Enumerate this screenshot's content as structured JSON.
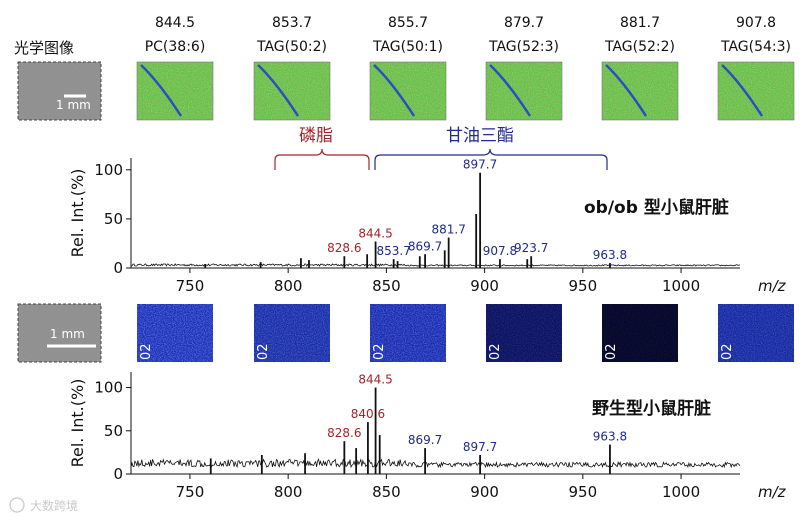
{
  "labels": {
    "optical_image": "光学图像",
    "scale_bar": "1 mm",
    "phospholipid": "磷脂",
    "triglyceride": "甘油三酯",
    "panel_ob": "ob/ob 型小鼠肝脏",
    "panel_wt": "野生型小鼠肝脏",
    "xlabel": "m/z",
    "ylabel": "Rel. Int.(%)",
    "tile_tag": "02",
    "watermark": "大数跨境"
  },
  "images": [
    {
      "mz": "844.5",
      "lipid": "PC(38:6)"
    },
    {
      "mz": "853.7",
      "lipid": "TAG(50:2)"
    },
    {
      "mz": "855.7",
      "lipid": "TAG(50:1)"
    },
    {
      "mz": "879.7",
      "lipid": "TAG(52:3)"
    },
    {
      "mz": "881.7",
      "lipid": "TAG(52:2)"
    },
    {
      "mz": "907.8",
      "lipid": "TAG(54:3)"
    }
  ],
  "colors": {
    "phospholipid": "#a3232b",
    "triglyceride": "#1f2a8c",
    "spectrum": "#111111"
  },
  "chart_data": [
    {
      "type": "line",
      "title": "ob/ob 型小鼠肝脏",
      "xlabel": "m/z",
      "ylabel": "Rel. Int.(%)",
      "xlim": [
        720,
        1030
      ],
      "ylim": [
        0,
        112
      ],
      "xticks": [
        750,
        800,
        850,
        900,
        950,
        1000
      ],
      "yticks": [
        0,
        50,
        100
      ],
      "baseline": 2,
      "peaks": [
        {
          "mz": 757.8,
          "intensity": 4
        },
        {
          "mz": 786.0,
          "intensity": 6
        },
        {
          "mz": 806.5,
          "intensity": 10
        },
        {
          "mz": 810.6,
          "intensity": 8
        },
        {
          "mz": 828.6,
          "intensity": 12,
          "label": "828.6",
          "group": "phospholipid"
        },
        {
          "mz": 840.2,
          "intensity": 14
        },
        {
          "mz": 844.5,
          "intensity": 27,
          "label": "844.5",
          "group": "phospholipid"
        },
        {
          "mz": 853.7,
          "intensity": 9,
          "label": "853.7",
          "group": "triglyceride"
        },
        {
          "mz": 855.7,
          "intensity": 7
        },
        {
          "mz": 867.0,
          "intensity": 12
        },
        {
          "mz": 869.7,
          "intensity": 14,
          "label": "869.7",
          "group": "triglyceride"
        },
        {
          "mz": 879.7,
          "intensity": 18
        },
        {
          "mz": 881.7,
          "intensity": 31,
          "label": "881.7",
          "group": "triglyceride"
        },
        {
          "mz": 895.7,
          "intensity": 55
        },
        {
          "mz": 897.7,
          "intensity": 97,
          "label": "897.7",
          "group": "triglyceride"
        },
        {
          "mz": 907.8,
          "intensity": 9,
          "label": "907.8",
          "group": "triglyceride"
        },
        {
          "mz": 921.7,
          "intensity": 9
        },
        {
          "mz": 923.7,
          "intensity": 12,
          "label": "923.7",
          "group": "triglyceride"
        },
        {
          "mz": 963.8,
          "intensity": 5,
          "label": "963.8",
          "group": "triglyceride"
        }
      ]
    },
    {
      "type": "line",
      "title": "野生型小鼠肝脏",
      "xlabel": "m/z",
      "ylabel": "Rel. Int.(%)",
      "xlim": [
        720,
        1030
      ],
      "ylim": [
        0,
        118
      ],
      "xticks": [
        750,
        800,
        850,
        900,
        950,
        1000
      ],
      "yticks": [
        0,
        50,
        100
      ],
      "baseline": 8,
      "peaks": [
        {
          "mz": 760.6,
          "intensity": 18
        },
        {
          "mz": 786.6,
          "intensity": 22
        },
        {
          "mz": 808.6,
          "intensity": 24
        },
        {
          "mz": 828.6,
          "intensity": 38,
          "label": "828.6",
          "group": "phospholipid"
        },
        {
          "mz": 834.6,
          "intensity": 30
        },
        {
          "mz": 840.6,
          "intensity": 60,
          "label": "840.6",
          "group": "phospholipid"
        },
        {
          "mz": 844.5,
          "intensity": 100,
          "label": "844.5",
          "group": "phospholipid"
        },
        {
          "mz": 846.6,
          "intensity": 45
        },
        {
          "mz": 869.7,
          "intensity": 30,
          "label": "869.7",
          "group": "triglyceride"
        },
        {
          "mz": 897.7,
          "intensity": 22,
          "label": "897.7",
          "group": "triglyceride"
        },
        {
          "mz": 963.8,
          "intensity": 34,
          "label": "963.8",
          "group": "triglyceride"
        }
      ]
    }
  ]
}
